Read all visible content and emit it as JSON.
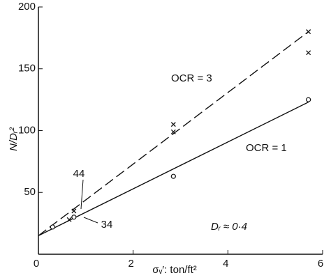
{
  "chart_data": {
    "type": "scatter",
    "x_label": "σᵥ′: ton/ft²",
    "y_label": "N/Dᵣ²",
    "xlim": [
      0,
      6
    ],
    "ylim": [
      0,
      200
    ],
    "xticks": [
      0,
      2,
      4,
      6
    ],
    "yticks": [
      50,
      100,
      150,
      200
    ],
    "series": [
      {
        "name": "OCR = 3",
        "color": "#111111",
        "marker": "x",
        "line_style": "dashed",
        "x": [
          0.65,
          0.75,
          2.85,
          2.85,
          5.7,
          5.7
        ],
        "values": [
          28,
          35,
          105,
          99,
          180,
          163
        ],
        "fit_x": [
          0,
          5.7
        ],
        "fit_values": [
          15,
          180
        ]
      },
      {
        "name": "OCR = 1",
        "color": "#111111",
        "marker": "o",
        "line_style": "solid",
        "x": [
          0.3,
          0.75,
          2.85,
          5.7
        ],
        "values": [
          22,
          30,
          63,
          125
        ],
        "fit_x": [
          0,
          5.7
        ],
        "fit_values": [
          15,
          123
        ]
      }
    ],
    "annotations": [
      "44",
      "34",
      "Dᵣ ≈ 0·4"
    ]
  }
}
